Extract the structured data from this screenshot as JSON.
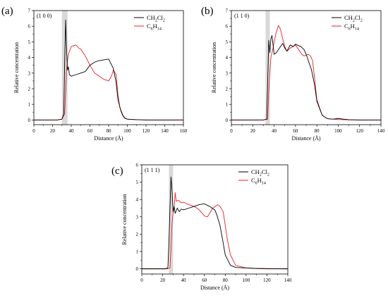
{
  "chart_data": [
    {
      "type": "line",
      "panel_label": "(a)",
      "facet_label": "(1 0 0)",
      "xlabel": "Distance (Å)",
      "ylabel": "Relative concentration",
      "xlim": [
        0,
        160
      ],
      "ylim": [
        -0.3,
        7
      ],
      "xticks": [
        0,
        20,
        40,
        60,
        80,
        100,
        120,
        140,
        160
      ],
      "yticks": [
        0,
        1,
        2,
        3,
        4,
        5,
        6,
        7
      ],
      "highlight_band": [
        30,
        36
      ],
      "legend_position": "top-right",
      "series": [
        {
          "name": "CH2Cl2",
          "name_base": "CH",
          "name_sub1": "2",
          "name_mid": "Cl",
          "name_sub2": "2",
          "color": "#000000",
          "x": [
            0,
            25,
            30,
            32,
            33,
            34,
            35,
            36,
            37,
            38,
            40,
            45,
            50,
            55,
            60,
            65,
            70,
            75,
            80,
            85,
            88,
            90,
            93,
            95,
            97,
            100,
            110,
            120,
            140,
            160
          ],
          "y": [
            0,
            0,
            0.05,
            0.4,
            3.8,
            6.4,
            4.5,
            3.2,
            3.4,
            2.9,
            2.8,
            2.9,
            3.0,
            3.1,
            3.5,
            3.7,
            3.8,
            3.85,
            3.9,
            3.3,
            2.4,
            1.3,
            0.6,
            0.3,
            0.12,
            0.05,
            0.02,
            0,
            0,
            0
          ]
        },
        {
          "name": "C6H14",
          "name_base": "C",
          "name_sub1": "6",
          "name_mid": "H",
          "name_sub2": "14",
          "color": "#e8202a",
          "x": [
            0,
            25,
            30,
            33,
            34,
            35,
            36,
            37,
            40,
            45,
            48,
            50,
            55,
            60,
            65,
            70,
            75,
            80,
            83,
            85,
            88,
            90,
            92,
            95,
            97,
            100,
            110,
            120,
            140,
            160
          ],
          "y": [
            0,
            0,
            0.05,
            0.4,
            1.8,
            3.2,
            3.8,
            4.2,
            4.7,
            4.8,
            4.6,
            4.55,
            4.1,
            3.5,
            3.0,
            2.8,
            2.6,
            2.5,
            2.8,
            3.2,
            2.9,
            1.6,
            0.8,
            0.35,
            0.15,
            0.05,
            0.02,
            0,
            0,
            0
          ]
        }
      ]
    },
    {
      "type": "line",
      "panel_label": "(b)",
      "facet_label": "(1 1 0)",
      "xlabel": "Distance (Å)",
      "ylabel": "Relative concentration",
      "xlim": [
        0,
        140
      ],
      "ylim": [
        -0.3,
        7
      ],
      "xticks": [
        0,
        20,
        40,
        60,
        80,
        100,
        120,
        140
      ],
      "yticks": [
        0,
        1,
        2,
        3,
        4,
        5,
        6,
        7
      ],
      "highlight_band": [
        32,
        36
      ],
      "legend_position": "top-right",
      "series": [
        {
          "name": "CH2Cl2",
          "name_base": "CH",
          "name_sub1": "2",
          "name_mid": "Cl",
          "name_sub2": "2",
          "color": "#000000",
          "x": [
            0,
            30,
            33,
            34,
            35,
            36,
            37,
            38,
            39,
            40,
            42,
            45,
            48,
            50,
            52,
            55,
            58,
            60,
            63,
            65,
            68,
            70,
            72,
            75,
            78,
            80,
            85,
            90,
            95,
            100,
            105,
            110,
            120,
            140
          ],
          "y": [
            0,
            0,
            0.05,
            2.5,
            5.1,
            4.3,
            5.2,
            5.4,
            4.8,
            4.2,
            4.3,
            4.6,
            4.9,
            4.6,
            4.4,
            4.8,
            4.7,
            4.85,
            4.75,
            4.7,
            4.5,
            4.2,
            3.8,
            3.2,
            2.2,
            1.2,
            0.3,
            0.08,
            0.05,
            0.1,
            0.05,
            0.02,
            0,
            0
          ]
        },
        {
          "name": "C6H14",
          "name_base": "C",
          "name_sub1": "6",
          "name_mid": "H",
          "name_sub2": "14",
          "color": "#e8202a",
          "x": [
            0,
            30,
            34,
            35,
            36,
            37,
            39,
            40,
            42,
            44,
            46,
            48,
            50,
            52,
            55,
            58,
            60,
            62,
            64,
            66,
            68,
            70,
            72,
            74,
            76,
            78,
            80,
            85,
            90,
            100,
            110,
            120,
            140
          ],
          "y": [
            0,
            0,
            0.05,
            1.8,
            3.0,
            4.0,
            4.6,
            5.0,
            5.6,
            6.05,
            5.8,
            5.2,
            4.7,
            4.4,
            4.6,
            4.7,
            4.8,
            4.6,
            4.4,
            4.2,
            4.1,
            4.15,
            4.2,
            4.1,
            3.8,
            2.6,
            1.3,
            0.3,
            0.08,
            0.03,
            0.01,
            0,
            0
          ]
        }
      ]
    },
    {
      "type": "line",
      "panel_label": "(c)",
      "facet_label": "(1 1 1)",
      "xlabel": "Distance (Å)",
      "ylabel": "Relative concentration",
      "xlim": [
        0,
        140
      ],
      "ylim": [
        -0.3,
        6
      ],
      "xticks": [
        0,
        20,
        40,
        60,
        80,
        100,
        120,
        140
      ],
      "yticks": [
        0,
        1,
        2,
        3,
        4,
        5,
        6
      ],
      "highlight_band": [
        26,
        30
      ],
      "legend_position": "top-right",
      "series": [
        {
          "name": "CH2Cl2",
          "name_base": "CH",
          "name_sub1": "2",
          "name_mid": "Cl",
          "name_sub2": "2",
          "color": "#000000",
          "x": [
            0,
            22,
            25,
            26,
            27,
            28,
            29,
            30,
            31,
            32,
            34,
            36,
            38,
            40,
            45,
            50,
            55,
            60,
            65,
            70,
            72,
            75,
            78,
            80,
            85,
            90,
            100,
            110,
            120,
            140
          ],
          "y": [
            0,
            0,
            0.05,
            1.5,
            3.5,
            5.3,
            4.5,
            3.3,
            3.6,
            3.2,
            3.5,
            3.3,
            3.45,
            3.4,
            3.5,
            3.6,
            3.7,
            3.75,
            3.6,
            3.4,
            3.1,
            2.5,
            1.5,
            0.8,
            0.2,
            0.08,
            0.05,
            0.02,
            0.01,
            0
          ]
        },
        {
          "name": "C6H14",
          "name_base": "C",
          "name_sub1": "6",
          "name_mid": "H",
          "name_sub2": "14",
          "color": "#e8202a",
          "x": [
            0,
            25,
            27,
            28,
            29,
            30,
            31,
            32,
            33,
            35,
            38,
            40,
            45,
            50,
            53,
            55,
            58,
            60,
            63,
            65,
            68,
            70,
            73,
            75,
            78,
            80,
            82,
            85,
            90,
            100,
            110,
            120,
            140
          ],
          "y": [
            0,
            0,
            0.05,
            1.2,
            2.6,
            3.2,
            3.5,
            4.4,
            3.9,
            3.95,
            3.8,
            3.85,
            3.7,
            3.6,
            3.5,
            3.4,
            3.2,
            3.05,
            3.0,
            3.2,
            3.5,
            3.6,
            3.7,
            3.6,
            3.3,
            2.5,
            1.7,
            0.8,
            0.2,
            0.05,
            0.02,
            0,
            0
          ]
        }
      ]
    }
  ]
}
